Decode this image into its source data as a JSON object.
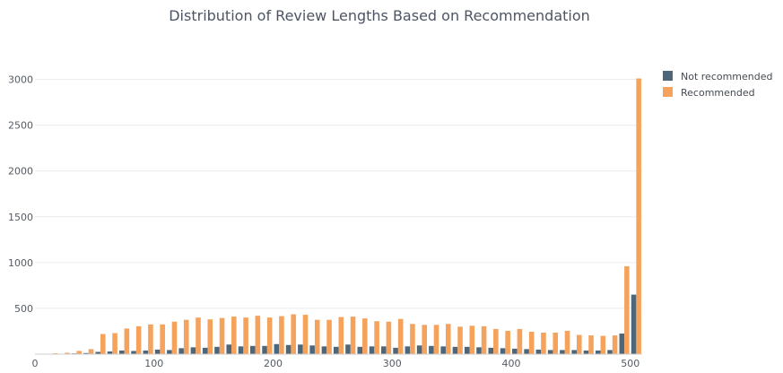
{
  "chart_data": {
    "type": "bar",
    "title": "Distribution of Review Lengths Based on Recommendation",
    "xlabel": "",
    "ylabel": "",
    "xlim": [
      0,
      510
    ],
    "ylim": [
      0,
      3250
    ],
    "xticks": [
      0,
      100,
      200,
      300,
      400,
      500
    ],
    "yticks": [
      500,
      1000,
      1500,
      2000,
      2500,
      3000
    ],
    "grid": true,
    "legend_position": "top-right",
    "bin_width": 10,
    "x": [
      5,
      15,
      25,
      35,
      45,
      55,
      65,
      75,
      85,
      95,
      105,
      115,
      125,
      135,
      145,
      155,
      165,
      175,
      185,
      195,
      205,
      215,
      225,
      235,
      245,
      255,
      265,
      275,
      285,
      295,
      305,
      315,
      325,
      335,
      345,
      355,
      365,
      375,
      385,
      395,
      405,
      415,
      425,
      435,
      445,
      455,
      465,
      475,
      485,
      495,
      505
    ],
    "series": [
      {
        "name": "Not recommended",
        "color": "#4e6679",
        "values": [
          2,
          4,
          5,
          8,
          12,
          25,
          30,
          40,
          35,
          40,
          50,
          45,
          65,
          75,
          70,
          80,
          105,
          85,
          90,
          90,
          110,
          100,
          105,
          95,
          85,
          80,
          105,
          80,
          85,
          85,
          70,
          85,
          95,
          90,
          85,
          80,
          80,
          75,
          70,
          65,
          60,
          55,
          50,
          45,
          45,
          45,
          40,
          40,
          45,
          225,
          650
        ]
      },
      {
        "name": "Recommended",
        "color": "#f5a35c",
        "values": [
          5,
          10,
          15,
          35,
          55,
          220,
          230,
          280,
          305,
          325,
          325,
          355,
          375,
          400,
          380,
          395,
          410,
          400,
          420,
          400,
          415,
          435,
          430,
          375,
          375,
          405,
          410,
          390,
          360,
          355,
          385,
          330,
          320,
          320,
          330,
          300,
          310,
          305,
          275,
          255,
          275,
          245,
          235,
          235,
          255,
          210,
          205,
          200,
          205,
          960,
          3010
        ]
      }
    ]
  }
}
